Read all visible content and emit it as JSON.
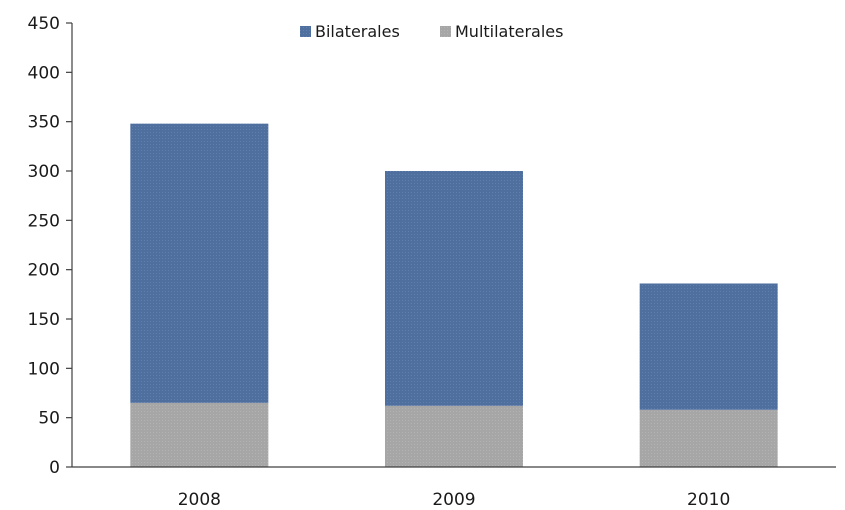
{
  "chart_data": {
    "type": "bar",
    "stacked": true,
    "categories": [
      "2008",
      "2009",
      "2010"
    ],
    "series": [
      {
        "name": "Multilaterales",
        "values": [
          65,
          62,
          58
        ],
        "color": "#a6a6a6"
      },
      {
        "name": "Bilaterales",
        "values": [
          283,
          238,
          128
        ],
        "color": "#4f6f9f"
      }
    ],
    "legend_order": [
      "Bilaterales",
      "Multilaterales"
    ],
    "legend_position": "top",
    "ylim": [
      0,
      450
    ],
    "yticks": [
      0,
      50,
      100,
      150,
      200,
      250,
      300,
      350,
      400,
      450
    ],
    "grid": false,
    "title": "",
    "xlabel": "",
    "ylabel": ""
  }
}
